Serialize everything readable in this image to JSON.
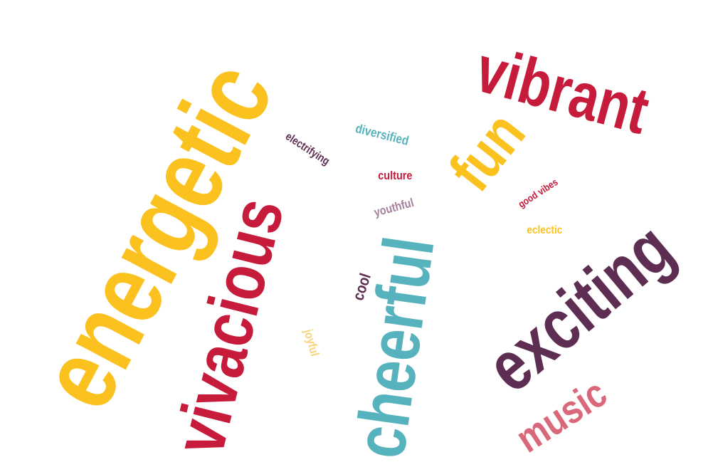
{
  "words": {
    "energetic": {
      "text": "energetic",
      "color": "#FBC11F"
    },
    "vibrant": {
      "text": "vibrant",
      "color": "#C71B3C"
    },
    "vivacious": {
      "text": "vivacious",
      "color": "#C71B3C"
    },
    "cheerful": {
      "text": "cheerful",
      "color": "#56B3BE"
    },
    "exciting": {
      "text": "exciting",
      "color": "#5E2D52"
    },
    "fun": {
      "text": "fun",
      "color": "#FBC11F"
    },
    "music": {
      "text": "music",
      "color": "#D9697A"
    },
    "diversified": {
      "text": "diversified",
      "color": "#56B3BE"
    },
    "electrifying": {
      "text": "electrifying",
      "color": "#5E2D52"
    },
    "culture": {
      "text": "culture",
      "color": "#C71B3C"
    },
    "youthful": {
      "text": "youthful",
      "color": "#A67F9A"
    },
    "good_vibes": {
      "text": "good vibes",
      "color": "#C71B3C"
    },
    "eclectic": {
      "text": "eclectic",
      "color": "#FBC11F"
    },
    "cool": {
      "text": "cool",
      "color": "#5E2D52"
    },
    "joyful": {
      "text": "joyful",
      "color": "#F7D37A"
    }
  }
}
